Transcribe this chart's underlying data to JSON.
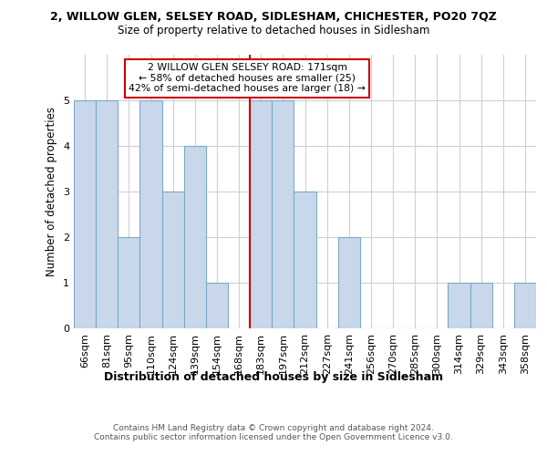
{
  "title_line1": "2, WILLOW GLEN, SELSEY ROAD, SIDLESHAM, CHICHESTER, PO20 7QZ",
  "title_line2": "Size of property relative to detached houses in Sidlesham",
  "xlabel": "Distribution of detached houses by size in Sidlesham",
  "ylabel": "Number of detached properties",
  "categories": [
    "66sqm",
    "81sqm",
    "95sqm",
    "110sqm",
    "124sqm",
    "139sqm",
    "154sqm",
    "168sqm",
    "183sqm",
    "197sqm",
    "212sqm",
    "227sqm",
    "241sqm",
    "256sqm",
    "270sqm",
    "285sqm",
    "300sqm",
    "314sqm",
    "329sqm",
    "343sqm",
    "358sqm"
  ],
  "values": [
    5,
    5,
    2,
    5,
    3,
    4,
    1,
    0,
    5,
    5,
    3,
    0,
    2,
    0,
    0,
    0,
    0,
    1,
    1,
    0,
    1
  ],
  "bar_color": "#c8d8ea",
  "bar_edge_color": "#7aaac8",
  "subject_line_index": 7,
  "subject_line_color": "#cc0000",
  "annotation_text": "2 WILLOW GLEN SELSEY ROAD: 171sqm\n← 58% of detached houses are smaller (25)\n42% of semi-detached houses are larger (18) →",
  "annotation_box_color": "#ffffff",
  "annotation_box_edge": "#cc0000",
  "ylim": [
    0,
    6
  ],
  "yticks": [
    0,
    1,
    2,
    3,
    4,
    5,
    6
  ],
  "footer_text": "Contains HM Land Registry data © Crown copyright and database right 2024.\nContains public sector information licensed under the Open Government Licence v3.0.",
  "bg_color": "#ffffff",
  "grid_color": "#d0d0d0"
}
